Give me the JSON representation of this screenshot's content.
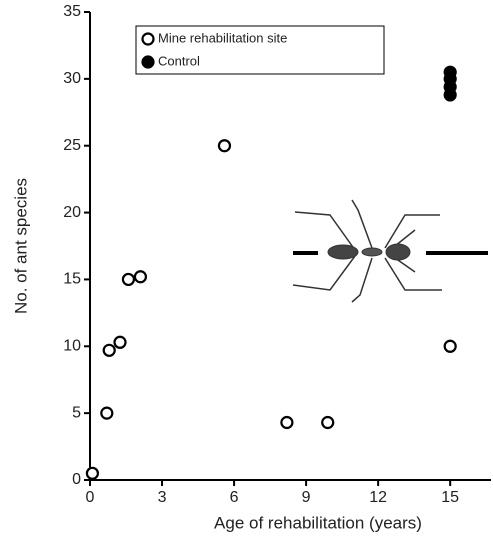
{
  "chart_data": {
    "type": "scatter",
    "x_label": "Age of rehabilitation (years)",
    "y_label": "No. of ant species",
    "xlim": [
      0,
      16.7
    ],
    "ylim": [
      0,
      35
    ],
    "xticks": [
      0,
      3,
      6,
      9,
      12,
      15
    ],
    "yticks": [
      0,
      5,
      10,
      15,
      20,
      25,
      30,
      35
    ],
    "legend": "top-left",
    "series": [
      {
        "name": "Mine rehabilitation site",
        "color": "#000000",
        "filled": false,
        "x": [
          0.1,
          0.7,
          0.8,
          1.25,
          1.6,
          2.1,
          5.6,
          8.2,
          9.9,
          15
        ],
        "values": [
          0.5,
          5,
          9.7,
          10.3,
          15,
          15.2,
          25,
          4.3,
          4.3,
          10
        ]
      },
      {
        "name": "Control",
        "color": "#000000",
        "filled": true,
        "x": [
          15,
          15,
          15,
          15
        ],
        "values": [
          30.5,
          30,
          29.4,
          28.8
        ]
      }
    ]
  }
}
